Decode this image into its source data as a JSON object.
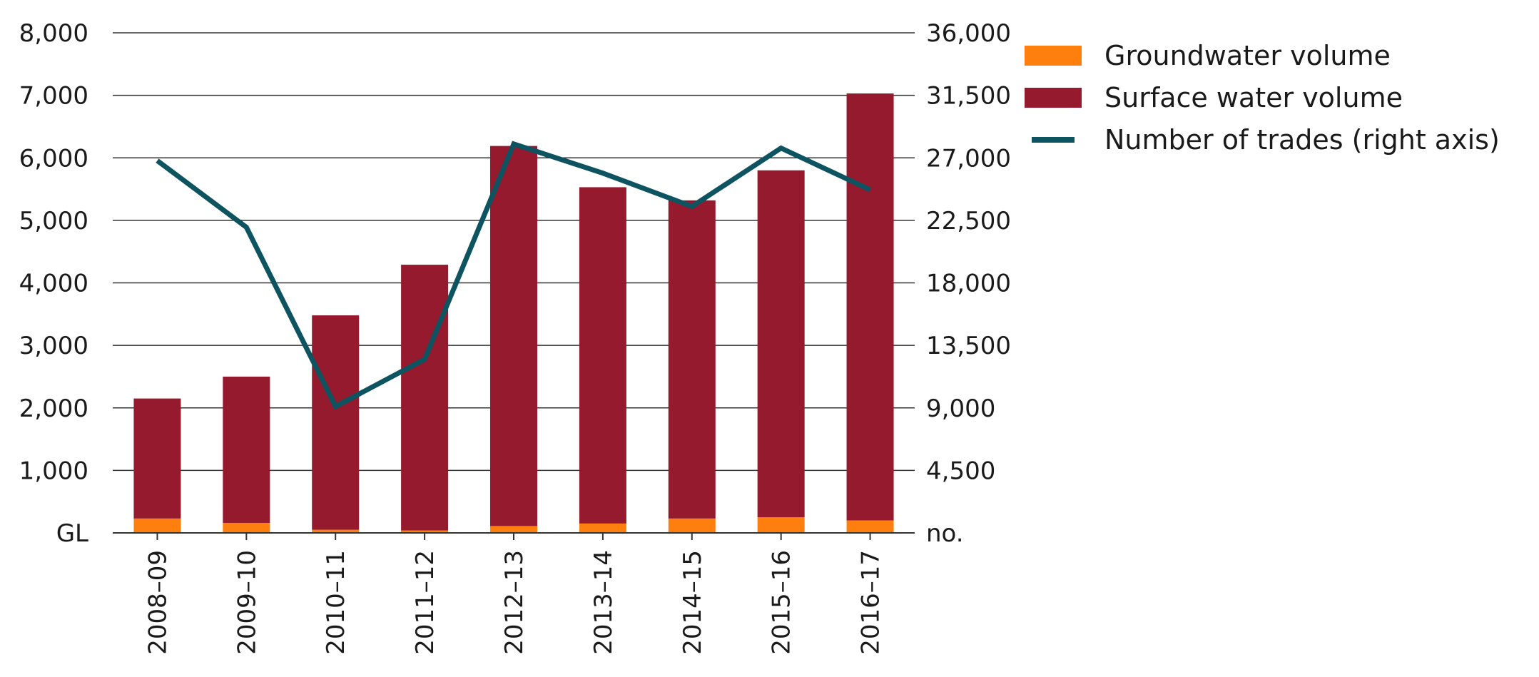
{
  "chart_data": {
    "type": "bar",
    "stacked": true,
    "categories": [
      "2008–09",
      "2009–10",
      "2010–11",
      "2011–12",
      "2012–13",
      "2013–14",
      "2014–15",
      "2015–16",
      "2016–17"
    ],
    "series": [
      {
        "name": "Groundwater volume",
        "type": "bar",
        "axis": "left",
        "color": "#ff7f0e",
        "values": [
          230,
          160,
          50,
          40,
          110,
          150,
          230,
          250,
          200
        ]
      },
      {
        "name": "Surface water volume",
        "type": "bar",
        "axis": "left",
        "color": "#951a2e",
        "values": [
          1920,
          2340,
          3430,
          4250,
          6080,
          5380,
          5090,
          5550,
          6830
        ]
      },
      {
        "name": "Number of trades (right axis)",
        "type": "line",
        "axis": "right",
        "color": "#0d5460",
        "values": [
          26800,
          22000,
          9100,
          12500,
          28000,
          25900,
          23500,
          27700,
          24700
        ]
      }
    ],
    "y_left": {
      "label": "GL",
      "min": 0,
      "max": 8000,
      "ticks": [
        0,
        1000,
        2000,
        3000,
        4000,
        5000,
        6000,
        7000,
        8000
      ],
      "tick_labels": [
        "GL",
        "1,000",
        "2,000",
        "3,000",
        "4,000",
        "5,000",
        "6,000",
        "7,000",
        "8,000"
      ]
    },
    "y_right": {
      "label": "no.",
      "min": 0,
      "max": 36000,
      "ticks": [
        0,
        4500,
        9000,
        13500,
        18000,
        22500,
        27000,
        31500,
        36000
      ],
      "tick_labels": [
        "no.",
        "4,500",
        "9,000",
        "13,500",
        "18,000",
        "22,500",
        "27,000",
        "31,500",
        "36,000"
      ]
    },
    "grid": true,
    "legend_position": "top-right"
  }
}
